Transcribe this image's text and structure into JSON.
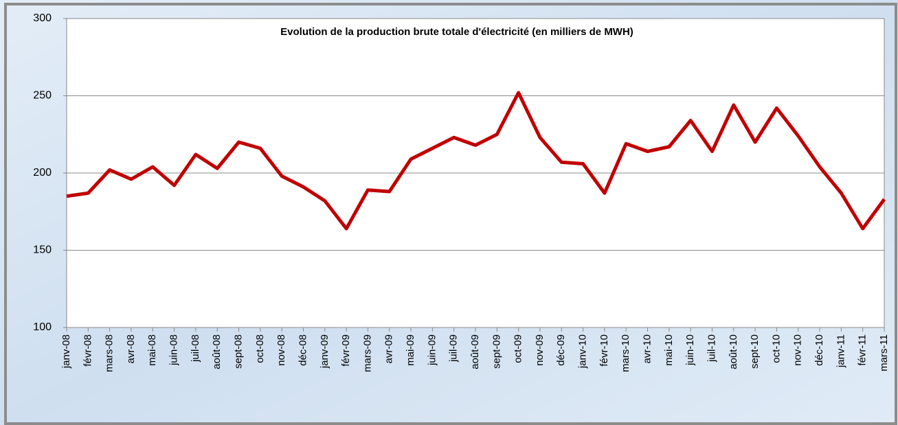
{
  "chart_data": {
    "type": "line",
    "title": "Evolution de la production brute totale d'électricité (en milliers de MWH)",
    "categories": [
      "janv-08",
      "févr-08",
      "mars-08",
      "avr-08",
      "mai-08",
      "juin-08",
      "juil-08",
      "août-08",
      "sept-08",
      "oct-08",
      "nov-08",
      "déc-08",
      "janv-09",
      "févr-09",
      "mars-09",
      "avr-09",
      "mai-09",
      "juin-09",
      "juil-09",
      "août-09",
      "sept-09",
      "oct-09",
      "nov-09",
      "déc-09",
      "janv-10",
      "févr-10",
      "mars-10",
      "avr-10",
      "mai-10",
      "juin-10",
      "juil-10",
      "août-10",
      "sept-10",
      "oct-10",
      "nov-10",
      "déc-10",
      "janv-11",
      "févr-11",
      "mars-11"
    ],
    "series": [
      {
        "name": "Production brute totale",
        "color": "#c00000",
        "values": [
          185,
          187,
          202,
          196,
          204,
          192,
          212,
          203,
          220,
          216,
          198,
          191,
          182,
          164,
          189,
          188,
          209,
          216,
          223,
          218,
          225,
          252,
          223,
          207,
          206,
          187,
          219,
          214,
          217,
          234,
          214,
          244,
          220,
          242,
          224,
          204,
          187,
          164,
          183
        ]
      }
    ],
    "ylim": [
      100,
      300
    ],
    "yticks": [
      100,
      150,
      200,
      250,
      300
    ],
    "grid": true
  }
}
